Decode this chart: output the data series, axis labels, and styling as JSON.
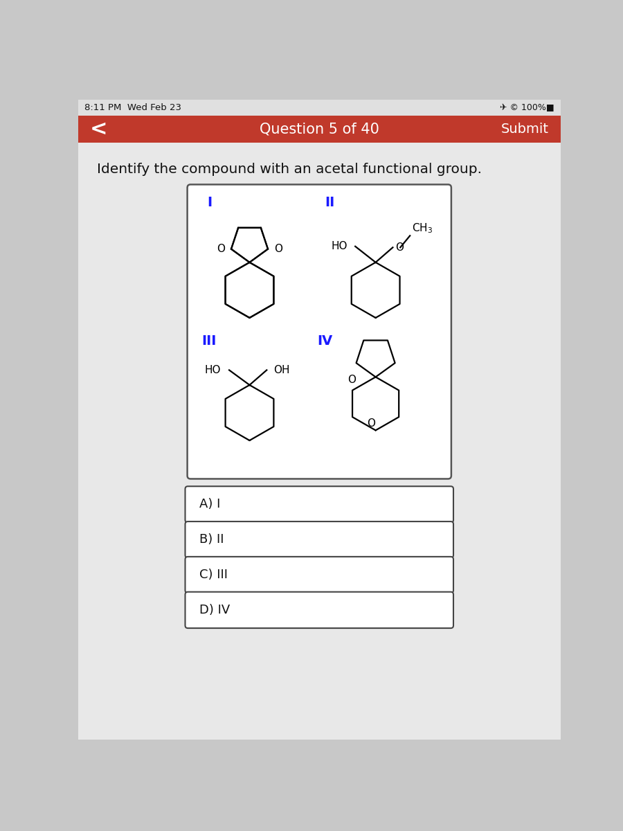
{
  "bg_color": "#c8c8c8",
  "content_bg": "#e8e8e8",
  "white": "#ffffff",
  "status_bar_bg": "#e0e0e0",
  "nav_bar_color": "#c0392b",
  "question_text": "Question 5 of 40",
  "submit_text": "Submit",
  "question_body": "Identify the compound with an acetal functional group.",
  "roman_color": "#1a1aff",
  "label_I": "I",
  "label_II": "II",
  "label_III": "III",
  "label_IV": "IV",
  "answer_A": "A) I",
  "answer_B": "B) II",
  "answer_C": "C) III",
  "answer_D": "D) IV",
  "status_time": "8:11 PM  Wed Feb 23",
  "status_right": "✈ © 100%■"
}
